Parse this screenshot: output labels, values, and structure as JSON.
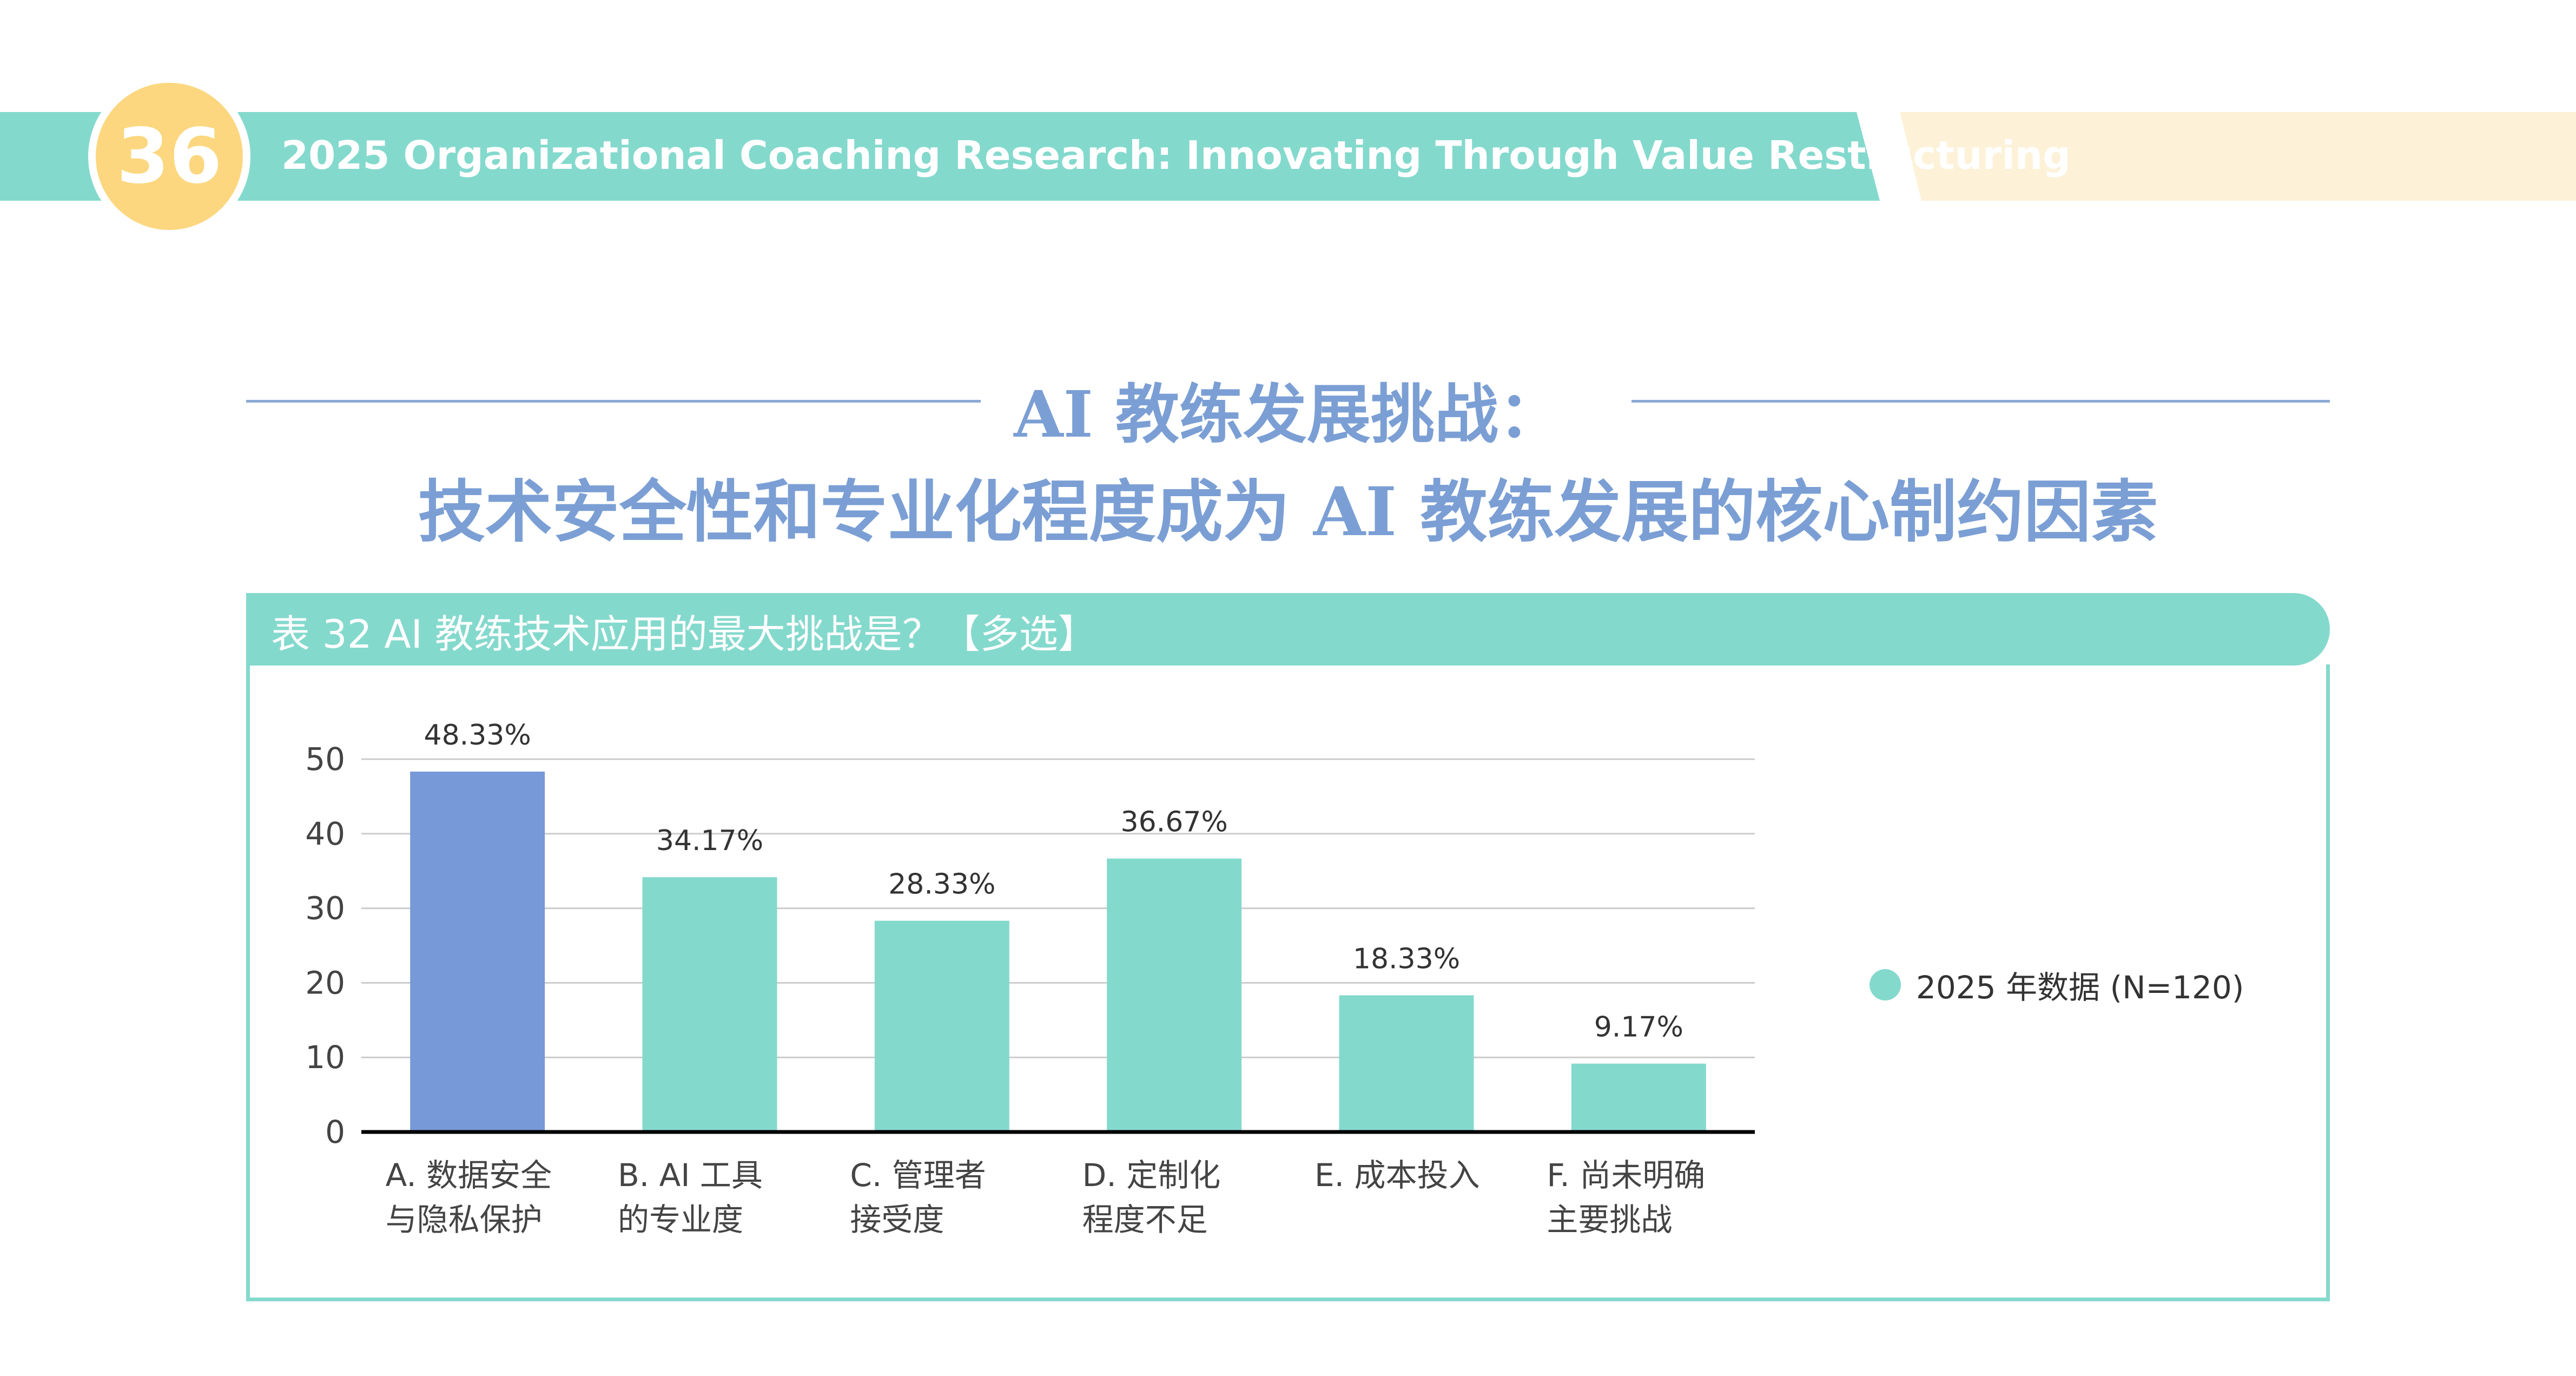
{
  "header": {
    "page_number": "36",
    "title": "2025 Organizational Coaching Research: Innovating Through Value Restructuring"
  },
  "heading": {
    "line1": "AI 教练发展挑战：",
    "line2": "技术安全性和专业化程度成为 AI 教练发展的核心制约因素"
  },
  "table_title": "表 32  AI 教练技术应用的最大挑战是？【多选】",
  "colors": {
    "teal": "#84d9cd",
    "highlight": "#7799d8",
    "yellow": "#fcd77f",
    "heading": "#7b9fd4"
  },
  "chart_data": {
    "type": "bar",
    "categories": [
      [
        "A. 数据安全",
        "与隐私保护"
      ],
      [
        "B. AI 工具",
        "的专业度"
      ],
      [
        "C. 管理者",
        "接受度"
      ],
      [
        "D. 定制化",
        "程度不足"
      ],
      [
        "E. 成本投入",
        ""
      ],
      [
        "F. 尚未明确",
        "主要挑战"
      ]
    ],
    "values": [
      48.33,
      34.17,
      28.33,
      36.67,
      18.33,
      9.17
    ],
    "data_labels": [
      "48.33%",
      "34.17%",
      "28.33%",
      "36.67%",
      "18.33%",
      "9.17%"
    ],
    "highlight_index": 0,
    "yticks": [
      "0",
      "10",
      "20",
      "30",
      "40",
      "50"
    ],
    "ylim": [
      0,
      50
    ],
    "grid": true,
    "legend": {
      "label": "2025 年数据 (N=120)",
      "placement": "right"
    }
  }
}
